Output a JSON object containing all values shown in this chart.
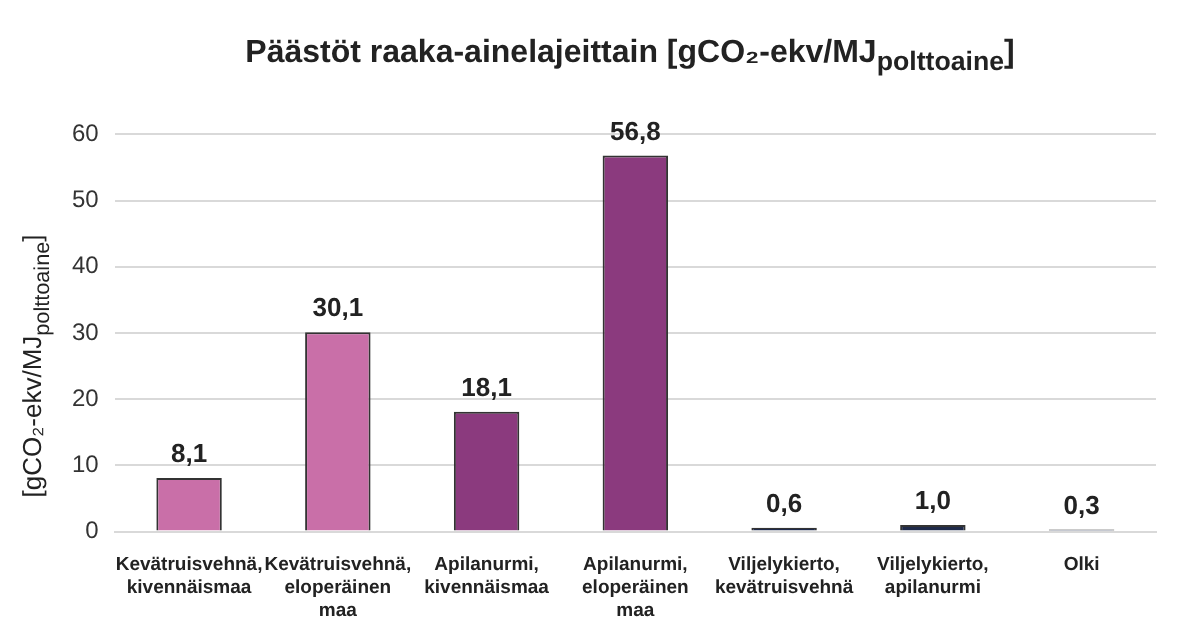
{
  "chart_data": {
    "type": "bar",
    "title": "Päästöt raaka-ainelajeittain [gCO₂-ekv/MJ$_{polttoaine}$]",
    "ylabel": "[gCO₂-ekv/MJ$_{polttoaine}$]",
    "categories": [
      "Kevätruisvehnä, kivennäismaa",
      "Kevätruisvehnä, eloperäinen maa",
      "Apilanurmi, kivennäismaa",
      "Apilanurmi, eloperäinen maa",
      "Viljelykierto, kevätruisvehnä",
      "Viljelykierto, apilanurmi",
      "Olki"
    ],
    "values": [
      8.1,
      30.1,
      18.1,
      56.8,
      0.6,
      1.0,
      0.3
    ],
    "value_labels": [
      "8,1",
      "30,1",
      "18,1",
      "56,8",
      "0,6",
      "1,0",
      "0,3"
    ],
    "colors": [
      "#c96fa8",
      "#c96fa8",
      "#8b3a7e",
      "#8b3a7e",
      "#1f2a4a",
      "#1f2a4a",
      "#1f2a4a"
    ],
    "ylim": [
      0,
      60
    ],
    "yticks": [
      0,
      10,
      20,
      30,
      40,
      50,
      60
    ],
    "grid": "y",
    "legend": false
  }
}
